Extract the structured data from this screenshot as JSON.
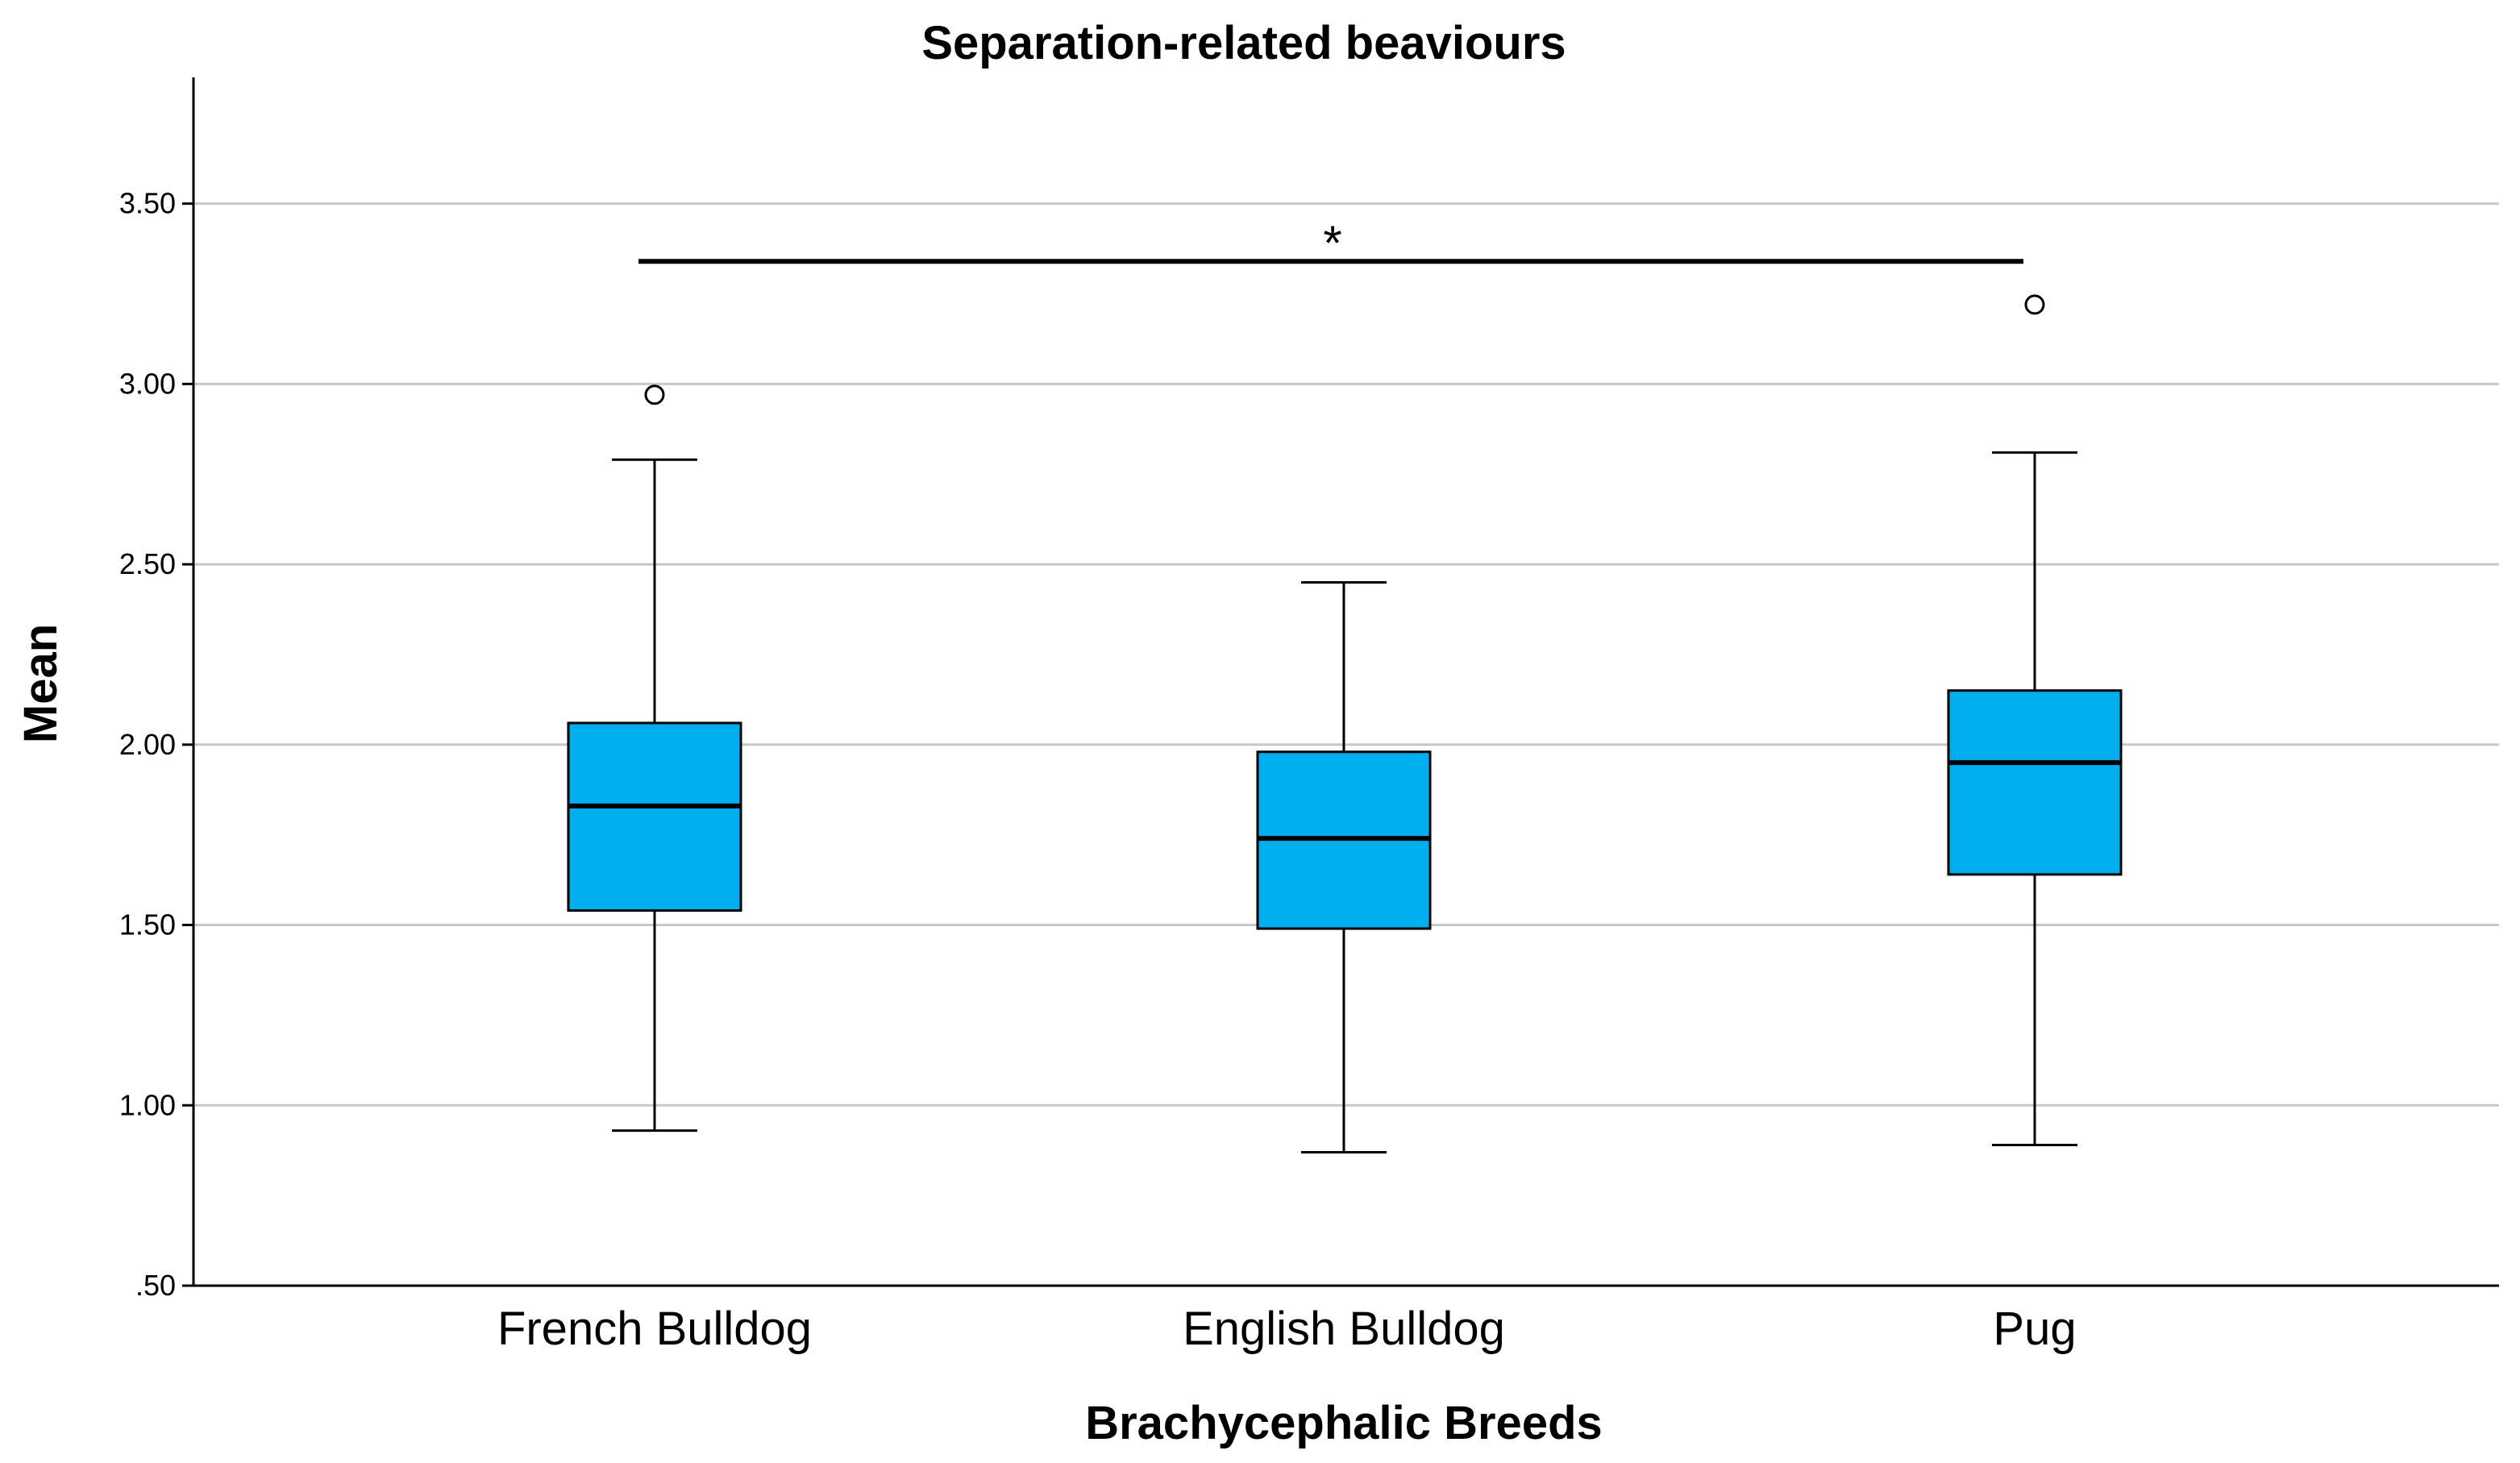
{
  "chart_data": {
    "type": "boxplot",
    "title": "Separation-related beaviours",
    "xlabel": "Brachycephalic Breeds",
    "ylabel": "Mean",
    "ylim": [
      0.5,
      3.85
    ],
    "yticks": [
      0.5,
      1.0,
      1.5,
      2.0,
      2.5,
      3.0,
      3.5
    ],
    "ytick_labels": [
      ".50",
      "1.00",
      "1.50",
      "2.00",
      "2.50",
      "3.00",
      "3.50"
    ],
    "grid": "horizontal",
    "box_color": "#00AEEF",
    "categories": [
      "French Bulldog",
      "English Bulldog",
      "Pug"
    ],
    "boxes": [
      {
        "category": "French Bulldog",
        "whisker_low": 0.93,
        "q1": 1.54,
        "median": 1.83,
        "q3": 2.06,
        "whisker_high": 2.79,
        "outliers": [
          2.97
        ]
      },
      {
        "category": "English Bulldog",
        "whisker_low": 0.87,
        "q1": 1.49,
        "median": 1.74,
        "q3": 1.98,
        "whisker_high": 2.45,
        "outliers": []
      },
      {
        "category": "Pug",
        "whisker_low": 0.89,
        "q1": 1.64,
        "median": 1.95,
        "q3": 2.15,
        "whisker_high": 2.81,
        "outliers": [
          3.22
        ]
      }
    ],
    "significance": {
      "from": "French Bulldog",
      "to": "Pug",
      "y": 3.34,
      "label": "*"
    }
  }
}
